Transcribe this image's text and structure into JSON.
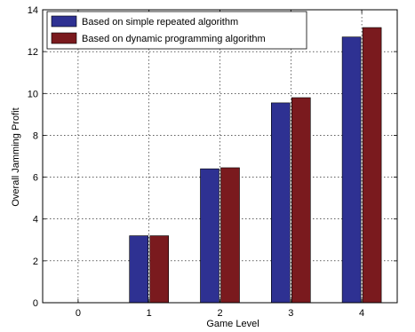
{
  "chart_data": {
    "type": "bar",
    "title": "",
    "xlabel": "Game Level",
    "ylabel": "Overall Jamming Profit",
    "categories": [
      "0",
      "1",
      "2",
      "3",
      "4"
    ],
    "series": [
      {
        "name": "Based on simple repeated algorithm",
        "values": [
          0,
          3.2,
          6.4,
          9.55,
          12.7
        ],
        "color": "#2e3192"
      },
      {
        "name": "Based on dynamic programming algorithm",
        "values": [
          0,
          3.2,
          6.45,
          9.8,
          13.15
        ],
        "color": "#7a1a1e"
      }
    ],
    "ylim": [
      0,
      14
    ],
    "yticks": [
      0,
      2,
      4,
      6,
      8,
      10,
      12,
      14
    ],
    "grid": true,
    "legend_position": "top-left"
  }
}
